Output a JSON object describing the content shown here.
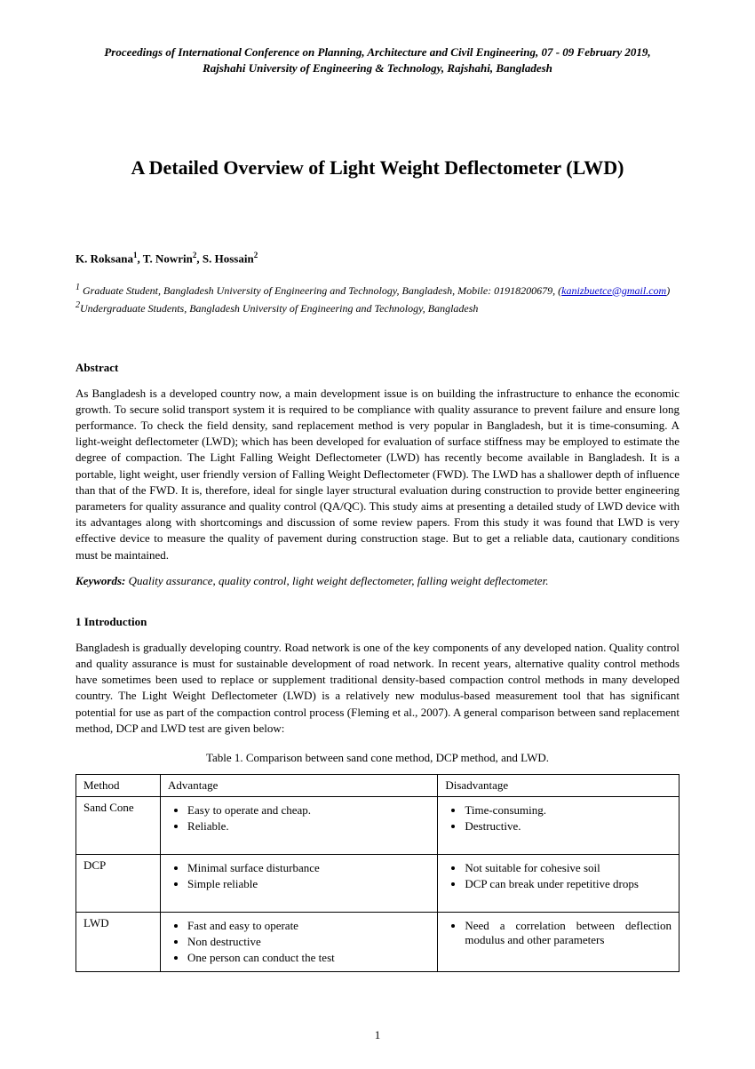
{
  "header": {
    "line1": "Proceedings of International Conference on Planning, Architecture and Civil Engineering, 07 - 09 February 2019,",
    "line2": "Rajshahi University of Engineering & Technology, Rajshahi, Bangladesh"
  },
  "title": "A Detailed Overview of Light Weight Deflectometer (LWD)",
  "authors": {
    "a1_name": "K. Roksana",
    "a1_sup": "1",
    "a2_name": "T. Nowrin",
    "a2_sup": "2",
    "a3_name": "S. Hossain",
    "a3_sup": "2"
  },
  "affiliations": {
    "aff1_sup": "1",
    "aff1_prefix": " G",
    "aff1_text": "raduate Student, Bangladesh University of Engineering and Technology, Bangladesh, Mobile: 01918200679, (",
    "aff1_email": "kanizbuetce@gmail.com",
    "aff1_close": ")",
    "aff2_sup": "2",
    "aff2_text": "Undergraduate Students, Bangladesh University of Engineering and Technology, Bangladesh"
  },
  "abstract": {
    "heading": "Abstract",
    "text": "As Bangladesh is a developed country now, a main development issue is on building the infrastructure to enhance the economic growth. To secure solid transport system it is required to be compliance with quality assurance to prevent failure and ensure long performance. To check the field density, sand replacement method is very popular in Bangladesh, but it is time-consuming. A light-weight deflectometer (LWD); which has been developed for evaluation of surface stiffness may be employed to estimate the degree of compaction. The Light Falling Weight Deflectometer (LWD) has recently become available in Bangladesh. It is a portable, light weight, user friendly version of Falling Weight Deflectometer (FWD).  The LWD has a shallower depth of influence than that of the FWD. It is, therefore, ideal for single layer structural evaluation during construction to provide better engineering parameters for quality assurance and quality control (QA/QC). This study aims at presenting a detailed study of LWD device with its advantages along with shortcomings and discussion of some review papers. From this study it was found that LWD is very effective device to measure the quality of pavement during construction stage. But to get a reliable data, cautionary conditions must be maintained."
  },
  "keywords": {
    "label": "Keywords:",
    "text": " Quality assurance, quality control, light weight deflectometer, falling weight deflectometer."
  },
  "intro": {
    "heading": "1 Introduction",
    "text": "Bangladesh is gradually developing country. Road network is one of the key components of any developed nation. Quality control and quality assurance is must for sustainable development of road network. In recent years, alternative quality control methods have sometimes been used to replace or supplement traditional density-based compaction control methods in many developed country. The Light Weight Deflectometer (LWD) is a relatively new modulus-based measurement tool that has significant potential for use as part of the compaction control process (Fleming et al., 2007). A general comparison between sand replacement method, DCP and LWD test are given below:"
  },
  "table": {
    "caption": "Table 1. Comparison between sand cone method, DCP method, and LWD.",
    "headers": {
      "c1": "Method",
      "c2": "Advantage",
      "c3": "Disadvantage"
    },
    "rows": [
      {
        "method": "Sand Cone",
        "adv": [
          "Easy to operate and cheap.",
          "Reliable."
        ],
        "dis": [
          "Time-consuming.",
          "Destructive."
        ]
      },
      {
        "method": "DCP",
        "adv": [
          "Minimal surface disturbance",
          "Simple reliable"
        ],
        "dis": [
          "Not suitable for cohesive soil",
          "DCP can break under repetitive drops"
        ]
      },
      {
        "method": "LWD",
        "adv": [
          "Fast and easy to operate",
          "Non destructive",
          "One person can conduct the test"
        ],
        "dis": [
          "Need a correlation between deflection modulus and other parameters"
        ]
      }
    ]
  },
  "page_number": "1"
}
